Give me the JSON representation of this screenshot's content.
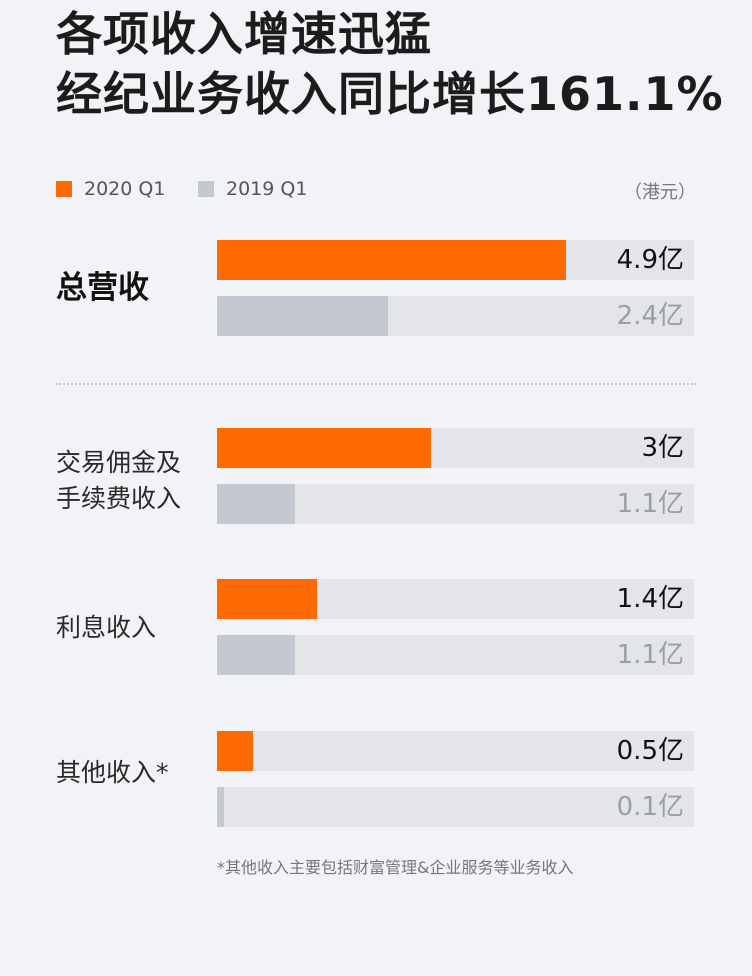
{
  "title": {
    "line1": "各项收入增速迅猛",
    "line2": "经纪业务收入同比增长161.1%"
  },
  "legend": {
    "current": "2020 Q1",
    "previous": "2019 Q1",
    "unit": "（港元）"
  },
  "colors": {
    "current": "#ff6a00",
    "previous": "#c4c8d1",
    "track": "#e3e5e9"
  },
  "footnote": "*其他收入主要包括财富管理&企业服务等业务收入",
  "chart_data": {
    "type": "bar",
    "orientation": "horizontal",
    "categories": [
      "总营收",
      "交易佣金及手续费收入",
      "利息收入",
      "其他收入*"
    ],
    "category_lines": [
      [
        "总营收"
      ],
      [
        "交易佣金及",
        "手续费收入"
      ],
      [
        "利息收入"
      ],
      [
        "其他收入*"
      ]
    ],
    "series": [
      {
        "name": "2020 Q1",
        "values": [
          4.9,
          3,
          1.4,
          0.5
        ],
        "labels": [
          "4.9亿",
          "3亿",
          "1.4亿",
          "0.5亿"
        ]
      },
      {
        "name": "2019 Q1",
        "values": [
          2.4,
          1.1,
          1.1,
          0.1
        ],
        "labels": [
          "2.4亿",
          "1.1亿",
          "1.1亿",
          "0.1亿"
        ]
      }
    ],
    "unit": "港元",
    "xlim": [
      0,
      6.7
    ]
  }
}
